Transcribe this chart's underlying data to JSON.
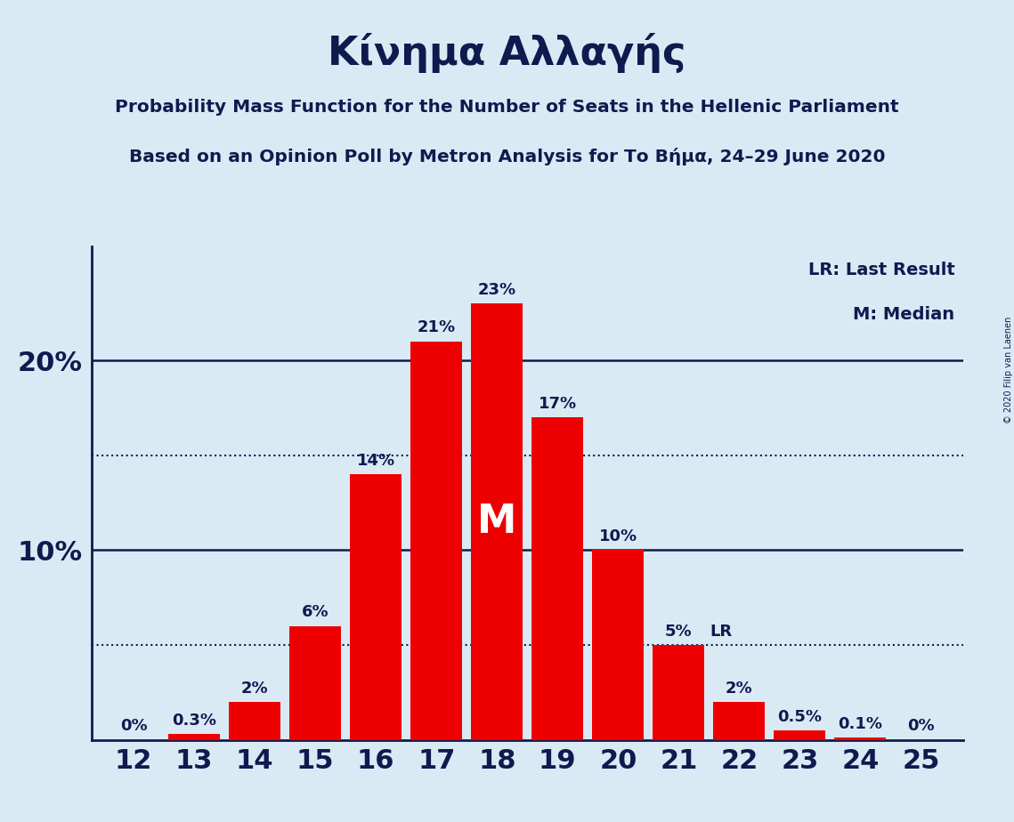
{
  "title": "Κίνημα Αλλαγής",
  "subtitle1": "Probability Mass Function for the Number of Seats in the Hellenic Parliament",
  "subtitle2": "Based on an Opinion Poll by Metron Analysis for Το Βήμα, 24–29 June 2020",
  "copyright": "© 2020 Filip van Laenen",
  "seats": [
    12,
    13,
    14,
    15,
    16,
    17,
    18,
    19,
    20,
    21,
    22,
    23,
    24,
    25
  ],
  "probabilities": [
    0.0,
    0.3,
    2.0,
    6.0,
    14.0,
    21.0,
    23.0,
    17.0,
    10.0,
    5.0,
    2.0,
    0.5,
    0.1,
    0.0
  ],
  "bar_color": "#ee0000",
  "background_color": "#daeaf5",
  "text_color": "#0d1b4e",
  "median_seat": 18,
  "lr_seat": 21,
  "dotted_lines": [
    5.0,
    15.0
  ],
  "solid_lines": [
    10.0,
    20.0
  ],
  "ylim": [
    0,
    26
  ],
  "bar_labels": [
    "0%",
    "0.3%",
    "2%",
    "6%",
    "14%",
    "21%",
    "23%",
    "17%",
    "10%",
    "5%",
    "2%",
    "0.5%",
    "0.1%",
    "0%"
  ]
}
